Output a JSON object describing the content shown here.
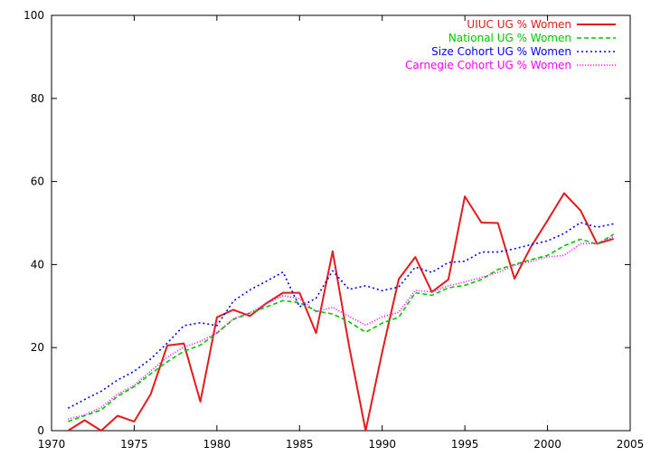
{
  "chart_data": {
    "type": "line",
    "title": "",
    "xlabel": "",
    "ylabel": "",
    "xlim": [
      1970,
      2005
    ],
    "ylim": [
      0,
      100
    ],
    "x_ticks": [
      1970,
      1975,
      1980,
      1985,
      1990,
      1995,
      2000,
      2005
    ],
    "y_ticks": [
      0,
      20,
      40,
      60,
      80,
      100
    ],
    "x_tick_labels": [
      "1970",
      "1975",
      "1980",
      "1985",
      "1990",
      "1995",
      "2000",
      "2005"
    ],
    "y_tick_labels": [
      "0",
      "20",
      "40",
      "60",
      "80",
      "100"
    ],
    "grid": false,
    "legend_position": "top-right",
    "x": [
      1971,
      1972,
      1973,
      1974,
      1975,
      1976,
      1977,
      1978,
      1979,
      1980,
      1981,
      1982,
      1983,
      1984,
      1985,
      1986,
      1987,
      1988,
      1989,
      1990,
      1991,
      1992,
      1993,
      1994,
      1995,
      1996,
      1997,
      1998,
      1999,
      2000,
      2001,
      2002,
      2003,
      2004
    ],
    "series": [
      {
        "name": "UIUC UG % Women",
        "color": "#e41a1c",
        "dash": "solid",
        "values": [
          0,
          2.5,
          0,
          3.6,
          2.2,
          8.8,
          20.5,
          21,
          7,
          27.3,
          29.1,
          27.6,
          30.7,
          33.2,
          33.2,
          23.5,
          43.2,
          20.3,
          0,
          18.9,
          36.5,
          41.8,
          33.4,
          36.4,
          56.4,
          50.1,
          50,
          36.6,
          44.3,
          50.6,
          57.2,
          53,
          45,
          46.2
        ]
      },
      {
        "name": "National UG % Women",
        "color": "#00c800",
        "dash": "dashed",
        "values": [
          2.2,
          3.6,
          5,
          8.3,
          10.6,
          13.7,
          16.6,
          19.1,
          20.6,
          23.5,
          26.8,
          28.3,
          29.8,
          31.3,
          30.8,
          28.8,
          28.1,
          26.2,
          23.7,
          25.9,
          27.3,
          33.2,
          32.6,
          34.4,
          35,
          36.4,
          38.8,
          40,
          41.2,
          42.2,
          44.5,
          46.1,
          44.9,
          47.3
        ]
      },
      {
        "name": "Size Cohort UG % Women",
        "color": "#0000ff",
        "dash": "dotted",
        "values": [
          5.4,
          7.5,
          9.5,
          12.2,
          14.3,
          17.3,
          21.1,
          25.3,
          26,
          25.3,
          31.2,
          33.9,
          36,
          38.2,
          29.8,
          31.9,
          38.5,
          34,
          34.9,
          33.7,
          34.6,
          39.4,
          38.1,
          40.5,
          40.8,
          43,
          43,
          43.8,
          44.8,
          45.7,
          47.5,
          50.1,
          49,
          49.8
        ]
      },
      {
        "name": "Carnegie Cohort UG % Women",
        "color": "#ff00ff",
        "dash": "densely-dotted",
        "values": [
          2.8,
          3.8,
          5.6,
          8.8,
          10.9,
          14.4,
          17.7,
          20.1,
          21.5,
          23.6,
          26.9,
          28.4,
          30.6,
          32.5,
          31.8,
          28.7,
          29.7,
          27.5,
          25.4,
          27.4,
          28.5,
          33.8,
          33.4,
          34.9,
          35.8,
          36.9,
          38.1,
          39.8,
          40.8,
          41.8,
          42.2,
          45,
          45.1,
          46.7
        ]
      }
    ]
  }
}
